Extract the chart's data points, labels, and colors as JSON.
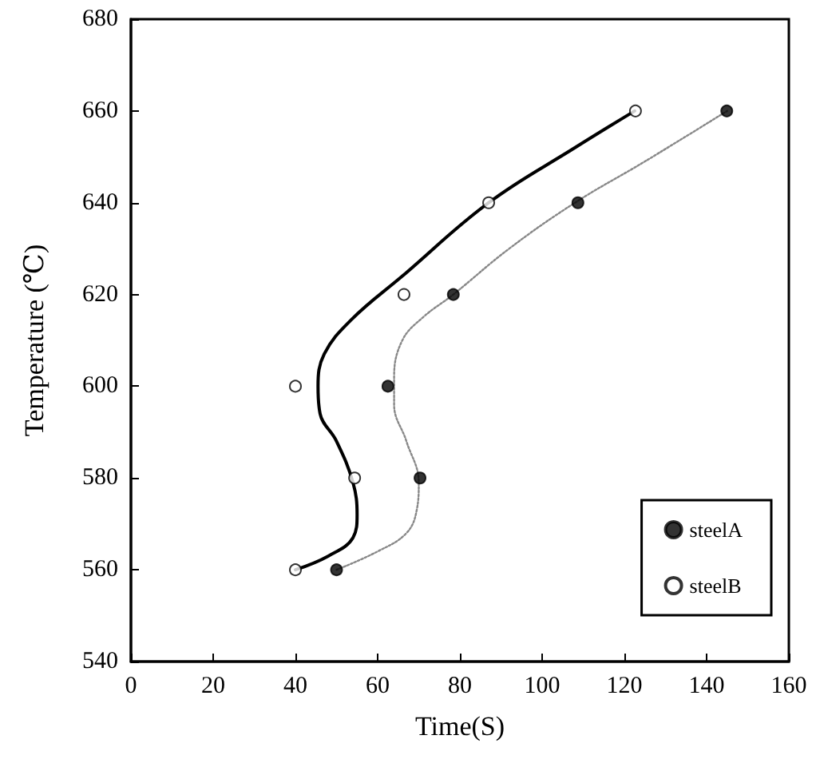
{
  "chart_data": {
    "type": "scatter",
    "xlabel": "Time(S)",
    "ylabel": "Temperature (℃)",
    "xlim": [
      0,
      160
    ],
    "xticks": [
      0,
      20,
      40,
      60,
      80,
      100,
      120,
      140,
      160
    ],
    "ylim": [
      540,
      680
    ],
    "yticks": [
      540,
      560,
      580,
      600,
      620,
      640,
      660,
      680
    ],
    "grid": false,
    "legend": "bottom right",
    "series": [
      {
        "name": "steelA",
        "marker": "circle",
        "color": "#000000",
        "x": [
          50,
          70.3,
          62.5,
          78.4,
          108.7,
          144.9
        ],
        "values": [
          560,
          580,
          600,
          620,
          640,
          660
        ]
      },
      {
        "name": "steelB",
        "marker": "circle",
        "color": "#ffffff",
        "x": [
          40,
          54.4,
          40,
          66.4,
          87,
          122.7
        ],
        "values": [
          560,
          580,
          600,
          620,
          640,
          660
        ]
      },
      {
        "type": "line",
        "marker": "none",
        "color": "#888888",
        "line_style": "dotted",
        "x": [
          50,
          60,
          67,
          69.5,
          70,
          67,
          64,
          64,
          66,
          71,
          78.4,
          92,
          108,
          125,
          145
        ],
        "values": [
          560,
          564,
          568,
          573,
          579,
          588,
          596,
          602,
          610,
          615,
          620,
          630,
          640,
          649,
          660
        ]
      },
      {
        "type": "line",
        "marker": "none",
        "color": "#000000",
        "line_style": "solid",
        "x": [
          40,
          48,
          54,
          55,
          54,
          50,
          46,
          45.5,
          47,
          53.6,
          66,
          87,
          108,
          122.5
        ],
        "values": [
          560,
          563,
          567,
          572,
          579,
          588,
          594,
          600,
          607,
          614.5,
          624,
          640,
          652,
          660
        ]
      }
    ]
  }
}
